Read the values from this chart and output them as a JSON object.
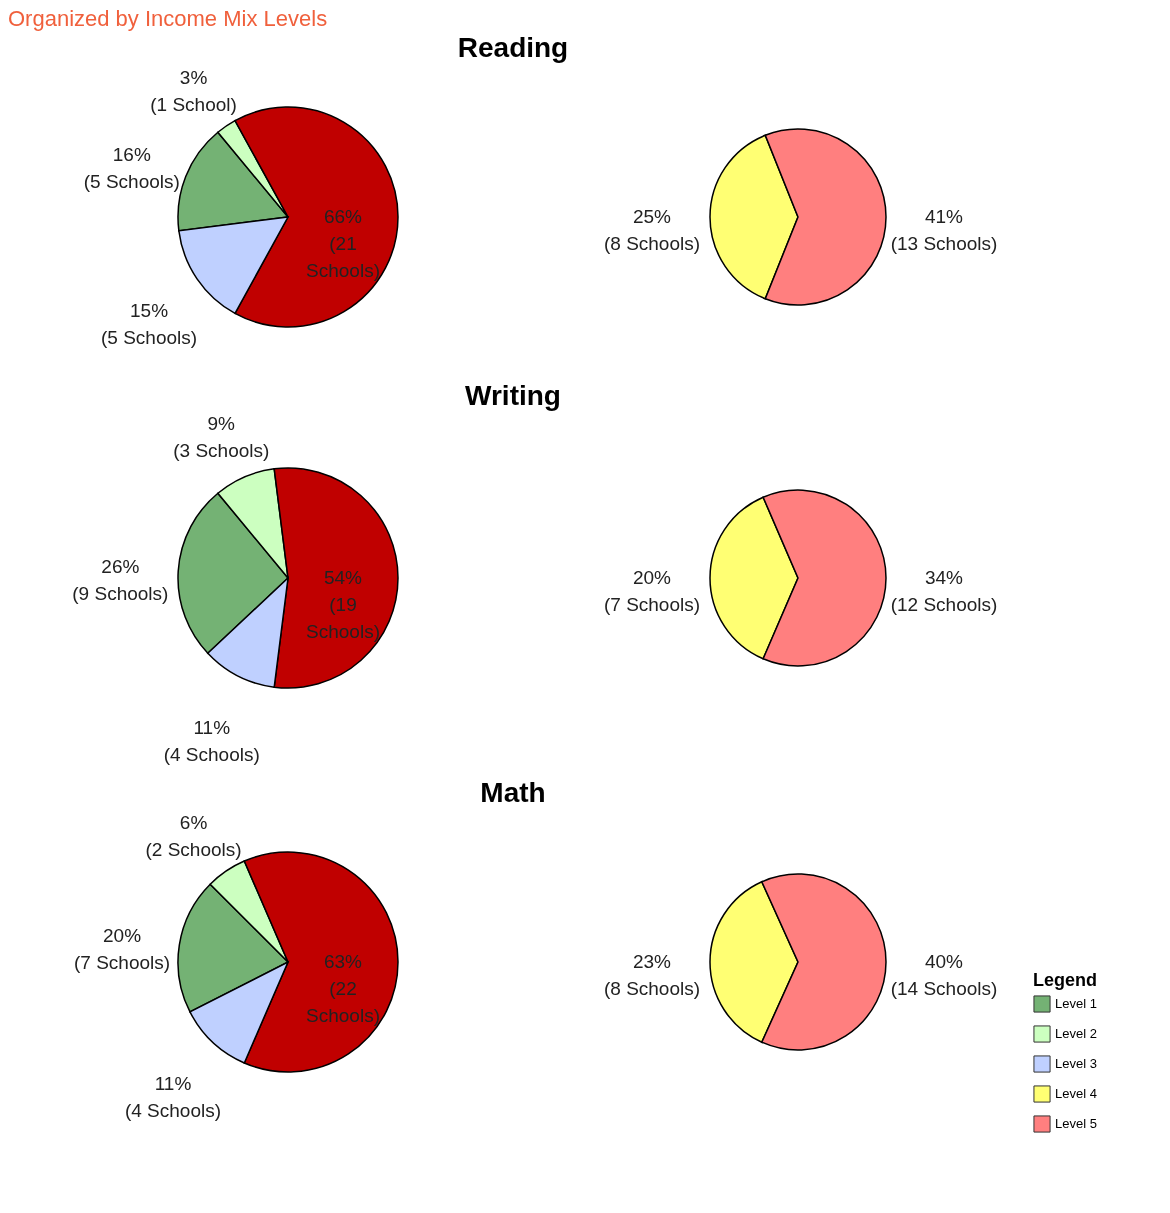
{
  "chart_data": [
    {
      "type": "pie",
      "title": "Reading",
      "annotations": [
        "Organized by Income Mix Levels"
      ],
      "categories": [
        "Level 1",
        "Level 2",
        null,
        "Level 3"
      ],
      "values": [
        16,
        3,
        66,
        15
      ],
      "colors": [
        "#74b274",
        "#ccffc0",
        "#c00000",
        "#bfd0ff"
      ],
      "value_labels": [
        "16%\n(5 Schools)",
        "3%\n(1 School)",
        "66%\n(21\nSchools)",
        "15%\n(5 Schools)"
      ],
      "legend": "bottom right"
    },
    {
      "type": "pie",
      "categories": [
        "Level 4",
        "Level 5"
      ],
      "values": [
        25,
        41
      ],
      "colors": [
        "#ffff73",
        "#ff7f7f"
      ],
      "value_labels": [
        "25%\n(8 Schools)",
        "41%\n(13 Schools)"
      ],
      "legend": "bottom right",
      "legend_title": "Legend"
    },
    {
      "type": "pie",
      "title": "Writing",
      "categories": [
        null,
        null,
        null,
        null
      ],
      "values": [
        26,
        9,
        54,
        11
      ],
      "colors": [
        "#74b274",
        "#ccffc0",
        "#c00000",
        "#bfd0ff"
      ],
      "value_labels": [
        "26%\n(9 Schools)",
        "9%\n(3 Schools)",
        "54%\n(19\nSchools)",
        "11%\n(4 Schools)"
      ]
    },
    {
      "type": "pie",
      "categories": [
        null,
        null
      ],
      "values": [
        20,
        34
      ],
      "colors": [
        "#ffff73",
        "#ff7f7f"
      ],
      "value_labels": [
        "20%\n(7 Schools)",
        "34%\n(12 Schools)"
      ]
    },
    {
      "type": "pie",
      "title": "Math",
      "categories": [
        null,
        null,
        null,
        null
      ],
      "values": [
        20,
        6,
        63,
        11
      ],
      "colors": [
        "#74b274",
        "#ccffc0",
        "#c00000",
        "#bfd0ff"
      ],
      "value_labels": [
        "20%\n(7 Schools)",
        "6%\n(2 Schools)",
        "63%\n(22\nSchools)",
        "11%\n(4 Schools)"
      ]
    },
    {
      "type": "pie",
      "categories": [
        null,
        null
      ],
      "values": [
        23,
        40
      ],
      "colors": [
        "#ffff73",
        "#ff7f7f"
      ],
      "value_labels": [
        "23%\n(8 Schools)",
        "40%\n(14 Schools)"
      ]
    }
  ]
}
